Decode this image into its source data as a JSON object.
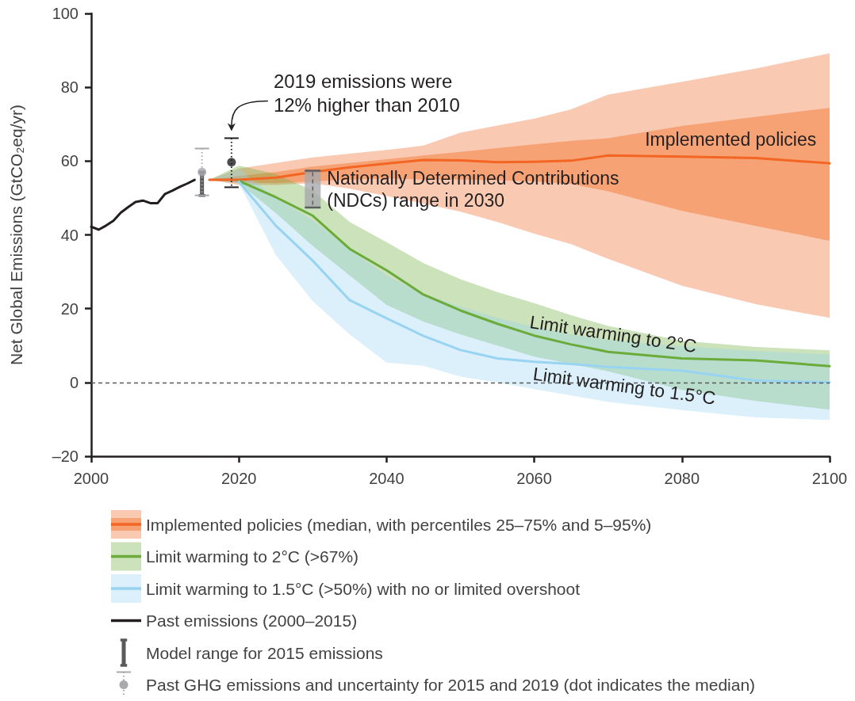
{
  "chart_data": {
    "type": "line",
    "x": [
      2016,
      2020,
      2025,
      2030,
      2035,
      2040,
      2045,
      2050,
      2055,
      2060,
      2065,
      2070,
      2080,
      2090,
      2100
    ],
    "xlim": [
      2000,
      2100
    ],
    "xticks": [
      2000,
      2020,
      2040,
      2060,
      2080,
      2100
    ],
    "ylim": [
      -20,
      100
    ],
    "yticks": [
      {
        "value": -20,
        "label": "–20"
      },
      0,
      20,
      40,
      60,
      80,
      100
    ],
    "ylabel": "Net Global Emissions (GtCO₂eq/yr)",
    "legend": "bottom",
    "marker": "none",
    "series": [
      {
        "name": "Implemented policies (median, with percentiles 25–75% and 5–95%)",
        "color": "#f26522",
        "values": [
          54.9,
          54.9,
          55.5,
          57.0,
          58.3,
          59.3,
          60.3,
          60.2,
          59.7,
          59.8,
          60.1,
          61.5,
          61.2,
          60.8,
          59.4
        ],
        "lower": [
          54.9,
          53.5,
          53.5,
          54.0,
          52.5,
          50.5,
          48.5,
          46.3,
          43.5,
          40.3,
          37.5,
          33.5,
          26.2,
          21.2,
          17.5
        ],
        "upper": [
          54.9,
          58.0,
          59.5,
          61.0,
          62.0,
          63.0,
          64.2,
          67.7,
          69.6,
          71.5,
          74.0,
          78.0,
          81.5,
          85.1,
          89.2
        ]
      },
      {
        "color": "#f7a274",
        "values": [
          null,
          null,
          null,
          null,
          null,
          null,
          null,
          null,
          null,
          null,
          null,
          null,
          null,
          null,
          null
        ],
        "lower": [
          54.9,
          54.2,
          54.0,
          54.5,
          55.0,
          55.3,
          55.0,
          55.0,
          54.8,
          54.5,
          53.8,
          51.8,
          46.5,
          42.4,
          38.4
        ],
        "upper": [
          54.9,
          56.0,
          57.0,
          58.5,
          59.5,
          60.5,
          61.5,
          62.5,
          63.5,
          64.5,
          65.5,
          66.2,
          69.5,
          72.0,
          74.4
        ]
      },
      {
        "name": "Limit warming to 2°C (>67%)",
        "color": "#6aab3a",
        "values": [
          null,
          54.6,
          50.2,
          45.2,
          36.2,
          30.4,
          23.8,
          19.5,
          15.9,
          12.7,
          10.3,
          8.3,
          6.5,
          6.0,
          4.4
        ],
        "lower": [
          54.9,
          54.0,
          45.9,
          37.0,
          29.0,
          21.0,
          16.5,
          13.0,
          10.0,
          7.0,
          5.0,
          3.0,
          -2.0,
          -5.0,
          -7.4
        ],
        "upper": [
          54.9,
          58.8,
          56.5,
          52.0,
          43.5,
          38.0,
          32.3,
          28.0,
          24.5,
          21.5,
          18.2,
          15.3,
          11.3,
          9.6,
          8.7
        ]
      },
      {
        "name": "Limit warming to 1.5°C (>50%) with no or limited overshoot",
        "color": "#98d4f2",
        "values": [
          null,
          54.4,
          42.5,
          33.0,
          22.3,
          17.4,
          12.6,
          8.8,
          6.5,
          5.6,
          5.0,
          4.2,
          3.2,
          0.5,
          0.0
        ],
        "lower": [
          54.9,
          54.0,
          34.5,
          22.0,
          13.0,
          5.4,
          4.5,
          1.6,
          0.0,
          -1.8,
          -3.5,
          -5.3,
          -7.5,
          -9.5,
          -10.2
        ],
        "upper": [
          54.9,
          57.8,
          50.0,
          44.0,
          36.0,
          29.0,
          24.0,
          20.5,
          17.5,
          15.0,
          13.0,
          11.5,
          9.8,
          8.5,
          7.6
        ]
      },
      {
        "name": "Past emissions (2000–2015)",
        "color": "#231f20",
        "x": [
          2000,
          2001,
          2002,
          2003,
          2004,
          2005,
          2006,
          2007,
          2008,
          2009,
          2010,
          2011,
          2012,
          2013,
          2014
        ],
        "values": [
          42.2,
          41.4,
          42.5,
          43.8,
          46.0,
          47.5,
          48.9,
          49.3,
          48.6,
          48.6,
          51.1,
          52.0,
          53.0,
          53.9,
          54.9
        ]
      },
      {
        "name": "Model range for 2015 emissions",
        "type": "bar",
        "color": "#58595b",
        "x": [
          2015
        ],
        "base": [
          50.7
        ],
        "values": [
          6.3
        ]
      },
      {
        "name": "Past GHG emissions and uncertainty for 2015 and 2019 (dot indicates the median)",
        "type": "scatter",
        "color": "#a7a9ac",
        "colors": [
          "#a7a9ac",
          "#231f20"
        ],
        "x": [
          2015,
          2019
        ],
        "values": [
          57.0,
          59.7
        ],
        "errors": [
          [
            50.7,
            63.4
          ],
          [
            52.9,
            66.2
          ]
        ],
        "marker": "circle",
        "line_style": "dotted"
      },
      {
        "type": "bar",
        "color": "#a7a9ac",
        "x": [
          2030
        ],
        "base": [
          47.4
        ],
        "values": [
          10.0
        ],
        "line_style": "dashed"
      }
    ],
    "annotations": [
      {
        "text": "2019 emissions were 12% higher than 2010",
        "x": 2019,
        "y": 66.2
      },
      {
        "text": "Nationally Determined Contributions (NDCs) range in 2030",
        "x": 2030,
        "y": 52.4
      },
      {
        "text": "Implemented policies",
        "x": 2086.6,
        "y": 60.9
      },
      {
        "text": "Limit warming to 2°C",
        "x": 2070.7,
        "y": 8.2
      },
      {
        "text": "Limit warming to 1.5°C",
        "x": 2072.2,
        "y": 4.0
      }
    ],
    "ref_lines": [
      {
        "axis": "y",
        "value": 0,
        "line_style": "dashed",
        "color": "#58595b"
      }
    ]
  }
}
